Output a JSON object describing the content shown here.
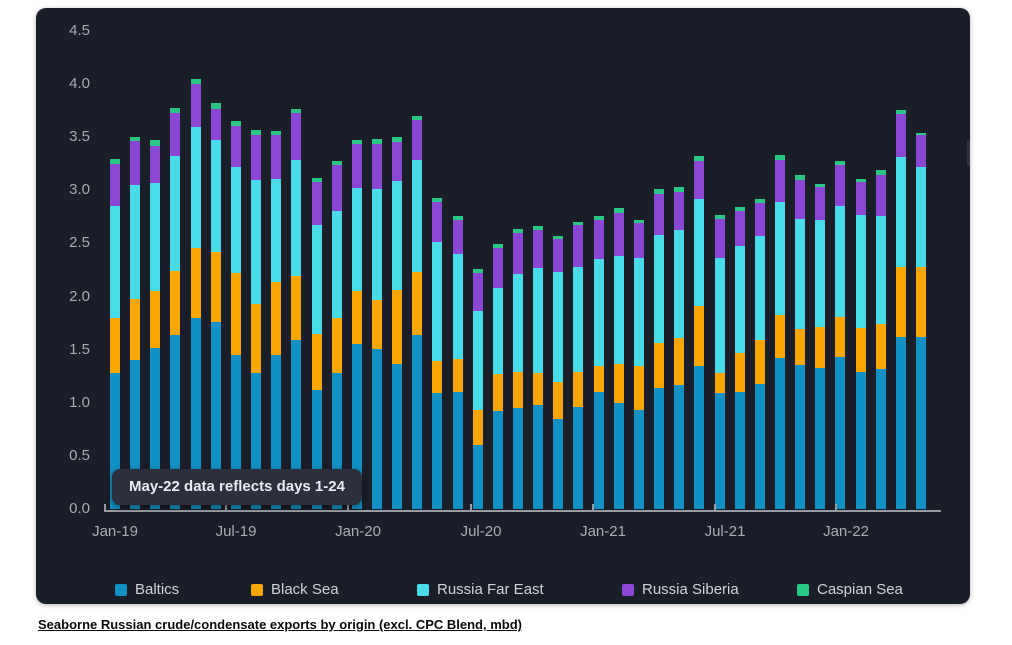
{
  "caption": {
    "text": "Seaborne Russian crude/condensate exports by origin (excl. CPC Blend, mbd)"
  },
  "annotation": {
    "text": "May-22 data reflects days 1-24"
  },
  "colors": {
    "card_background": "#1a1e29",
    "axis_text": "#a6abb4",
    "axis_line": "#979ca4",
    "legend_text": "#ced2d8",
    "tooltip_background": "#2b303c",
    "tooltip_text": "#e9ebf0",
    "caption_text": "#0b0b0b"
  },
  "chart_data": {
    "type": "bar",
    "stacked": true,
    "title": "Seaborne Russian crude/condensate exports by origin (excl. CPC Blend, mbd)",
    "xlabel": "",
    "ylabel": "",
    "ylim": [
      0,
      4.5
    ],
    "grid": false,
    "legend_position": "bottom",
    "ytick_labels": [
      "0.0",
      "0.5",
      "1.0",
      "1.5",
      "2.0",
      "2.5",
      "3.0",
      "3.5",
      "4.0",
      "4.5"
    ],
    "xtick_labels": [
      "Jan-19",
      "Jul-19",
      "Jan-20",
      "Jul-20",
      "Jan-21",
      "Jul-21",
      "Jan-22"
    ],
    "categories": [
      "Jan-19",
      "Feb-19",
      "Mar-19",
      "Apr-19",
      "May-19",
      "Jun-19",
      "Jul-19",
      "Aug-19",
      "Sep-19",
      "Oct-19",
      "Nov-19",
      "Dec-19",
      "Jan-20",
      "Feb-20",
      "Mar-20",
      "Apr-20",
      "May-20",
      "Jun-20",
      "Jul-20",
      "Aug-20",
      "Sep-20",
      "Oct-20",
      "Nov-20",
      "Dec-20",
      "Jan-21",
      "Feb-21",
      "Mar-21",
      "Apr-21",
      "May-21",
      "Jun-21",
      "Jul-21",
      "Aug-21",
      "Sep-21",
      "Oct-21",
      "Nov-21",
      "Dec-21",
      "Jan-22",
      "Feb-22",
      "Mar-22",
      "Apr-22",
      "May-22"
    ],
    "series": [
      {
        "name": "Baltics",
        "color": "#1191c4",
        "values": [
          1.28,
          1.4,
          1.52,
          1.64,
          1.8,
          1.76,
          1.45,
          1.28,
          1.45,
          1.59,
          1.12,
          1.28,
          1.55,
          1.51,
          1.37,
          1.64,
          1.09,
          1.1,
          0.6,
          0.92,
          0.95,
          0.98,
          0.85,
          0.96,
          1.1,
          1.0,
          0.93,
          1.14,
          1.17,
          1.35,
          1.09,
          1.1,
          1.18,
          1.42,
          1.36,
          1.33,
          1.43,
          1.29,
          1.32,
          1.62,
          1.62
        ]
      },
      {
        "name": "Black Sea",
        "color": "#f8a600",
        "values": [
          0.52,
          0.58,
          0.53,
          0.6,
          0.66,
          0.66,
          0.77,
          0.65,
          0.69,
          0.6,
          0.53,
          0.52,
          0.5,
          0.46,
          0.69,
          0.59,
          0.3,
          0.31,
          0.33,
          0.35,
          0.34,
          0.3,
          0.35,
          0.33,
          0.25,
          0.37,
          0.42,
          0.42,
          0.44,
          0.56,
          0.19,
          0.37,
          0.41,
          0.41,
          0.33,
          0.38,
          0.38,
          0.41,
          0.42,
          0.66,
          0.66
        ]
      },
      {
        "name": "Russia Far East",
        "color": "#48dce8",
        "values": [
          1.05,
          1.07,
          1.02,
          1.08,
          1.14,
          1.05,
          1.0,
          1.17,
          0.97,
          1.1,
          1.02,
          1.01,
          0.97,
          1.04,
          1.03,
          1.06,
          1.12,
          0.99,
          0.93,
          0.81,
          0.92,
          0.99,
          1.03,
          0.99,
          1.0,
          1.01,
          1.01,
          1.02,
          1.02,
          1.01,
          1.08,
          1.01,
          0.98,
          1.06,
          1.04,
          1.01,
          1.04,
          1.07,
          1.02,
          1.03,
          0.94
        ]
      },
      {
        "name": "Russia Siberia",
        "color": "#8b46d4",
        "values": [
          0.4,
          0.41,
          0.35,
          0.41,
          0.4,
          0.3,
          0.39,
          0.42,
          0.41,
          0.44,
          0.41,
          0.43,
          0.42,
          0.43,
          0.37,
          0.37,
          0.38,
          0.32,
          0.36,
          0.38,
          0.39,
          0.36,
          0.31,
          0.39,
          0.37,
          0.41,
          0.33,
          0.39,
          0.36,
          0.36,
          0.37,
          0.33,
          0.31,
          0.4,
          0.37,
          0.31,
          0.39,
          0.31,
          0.39,
          0.41,
          0.3
        ]
      },
      {
        "name": "Caspian Sea",
        "color": "#29c785",
        "values": [
          0.05,
          0.04,
          0.05,
          0.05,
          0.05,
          0.05,
          0.04,
          0.05,
          0.04,
          0.04,
          0.04,
          0.04,
          0.04,
          0.04,
          0.04,
          0.04,
          0.04,
          0.04,
          0.04,
          0.04,
          0.04,
          0.03,
          0.03,
          0.03,
          0.04,
          0.04,
          0.03,
          0.04,
          0.04,
          0.04,
          0.04,
          0.03,
          0.04,
          0.04,
          0.04,
          0.03,
          0.04,
          0.03,
          0.04,
          0.04,
          0.02
        ]
      }
    ]
  },
  "layout_hints": {
    "legend_item_lefts": [
      79,
      215,
      381,
      586,
      761
    ],
    "xtick_centers": [
      11,
      132,
      254,
      377,
      499,
      621,
      742
    ]
  }
}
